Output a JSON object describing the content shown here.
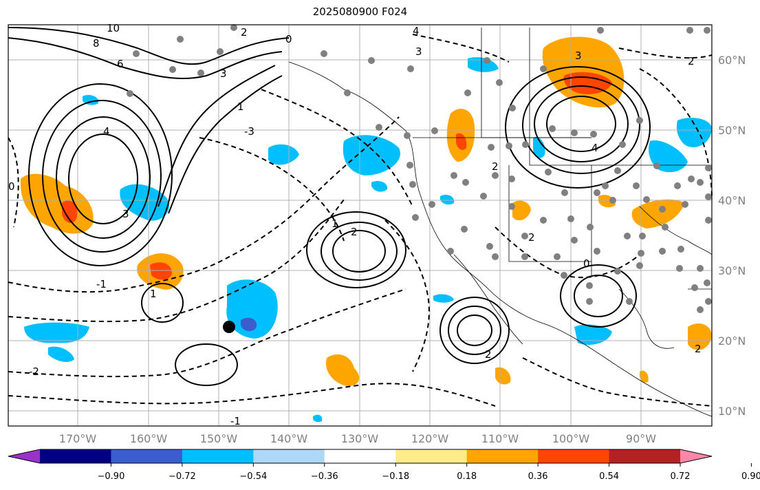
{
  "title": "2025080900 F024",
  "lat_labels": [
    "60°N",
    "50°N",
    "40°N",
    "30°N",
    "20°N",
    "10°N"
  ],
  "lon_labels": [
    "170°W",
    "160°W",
    "150°W",
    "140°W",
    "130°W",
    "120°W",
    "110°W",
    "100°W",
    "90°W"
  ],
  "contour_labels": [
    "10",
    "8",
    "6",
    "4",
    "3",
    "2",
    "1",
    "0",
    "0",
    "-1",
    "-2",
    "-3",
    "-1",
    "1",
    "2",
    "1",
    "2",
    "3",
    "2",
    "0",
    "2",
    "2",
    "4",
    "3",
    "2",
    "3",
    "4"
  ],
  "colorbar": {
    "ticks": [
      "−0.90",
      "−0.72",
      "−0.54",
      "−0.36",
      "−0.18",
      "0.18",
      "0.36",
      "0.54",
      "0.72",
      "0.90"
    ],
    "colors": [
      "#9932cc",
      "#000080",
      "#3a5fcd",
      "#00bfff",
      "#add8f6",
      "#ffffff",
      "#ffeb8a",
      "#ffa500",
      "#ff4500",
      "#b22222",
      "#ff88aa"
    ]
  },
  "marker": "station-dot"
}
